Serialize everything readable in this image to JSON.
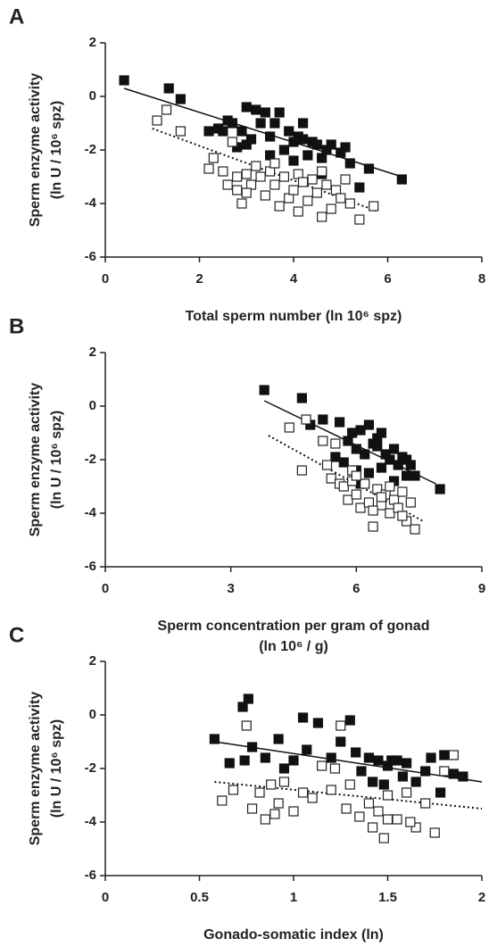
{
  "chart_data": [
    {
      "type": "scatter",
      "panel": "A",
      "ylabel": [
        "Sperm enzyme activity",
        "(ln U / 10⁶ spz)"
      ],
      "xlabel": [
        "Total sperm number (ln 10⁶ spz)"
      ],
      "xlim": [
        0,
        8
      ],
      "xticks": [
        0,
        2,
        4,
        6,
        8
      ],
      "ylim": [
        -6,
        2
      ],
      "yticks": [
        -6,
        -4,
        -2,
        0,
        2
      ],
      "series": [
        {
          "color": "#111111",
          "marker": "filled",
          "x": [
            0.4,
            1.35,
            1.6,
            2.2,
            2.4,
            2.6,
            2.7,
            2.8,
            2.9,
            3.0,
            3.1,
            3.2,
            3.3,
            3.4,
            3.5,
            3.6,
            3.7,
            3.8,
            3.9,
            4.0,
            4.1,
            4.2,
            4.3,
            4.4,
            4.5,
            4.6,
            4.7,
            4.8,
            5.0,
            5.2,
            5.4,
            5.6,
            6.3,
            3.5,
            4.2,
            4.6,
            3.0,
            4.0,
            2.5,
            5.1
          ],
          "values": [
            0.6,
            0.3,
            -0.1,
            -1.3,
            -1.2,
            -0.9,
            -1.0,
            -1.9,
            -1.3,
            -0.4,
            -1.6,
            -0.5,
            -1.0,
            -0.6,
            -1.5,
            -1.0,
            -0.6,
            -2.0,
            -1.3,
            -1.7,
            -1.5,
            -1.6,
            -2.2,
            -1.7,
            -1.8,
            -2.3,
            -2.0,
            -1.8,
            -2.1,
            -2.5,
            -3.4,
            -2.7,
            -3.1,
            -2.2,
            -1.0,
            -2.9,
            -1.8,
            -2.4,
            -1.3,
            -1.9
          ]
        },
        {
          "color": "#222222",
          "marker": "open",
          "x": [
            1.1,
            1.3,
            1.6,
            2.2,
            2.3,
            2.5,
            2.6,
            2.7,
            2.8,
            2.9,
            3.0,
            3.1,
            3.2,
            3.3,
            3.4,
            3.5,
            3.6,
            3.7,
            3.8,
            3.9,
            4.0,
            4.1,
            4.2,
            4.3,
            4.4,
            4.5,
            4.6,
            4.7,
            4.8,
            4.9,
            5.0,
            5.1,
            5.2,
            5.4,
            5.7,
            3.0,
            3.6,
            4.1,
            2.8,
            4.6
          ],
          "values": [
            -0.9,
            -0.5,
            -1.3,
            -2.7,
            -2.3,
            -2.8,
            -3.3,
            -1.7,
            -3.5,
            -4.0,
            -2.9,
            -3.3,
            -2.6,
            -3.0,
            -3.7,
            -2.8,
            -3.3,
            -4.1,
            -3.0,
            -3.8,
            -3.5,
            -2.9,
            -3.2,
            -3.9,
            -3.1,
            -3.6,
            -4.5,
            -3.3,
            -4.2,
            -3.5,
            -3.8,
            -3.1,
            -4.0,
            -4.6,
            -4.1,
            -3.6,
            -2.5,
            -4.3,
            -3.0,
            -2.8
          ]
        }
      ],
      "trend_lines": [
        {
          "style": "solid",
          "x": [
            0.4,
            6.3
          ],
          "y": [
            0.3,
            -3.0
          ]
        },
        {
          "style": "dotted",
          "x": [
            1.0,
            5.8
          ],
          "y": [
            -1.2,
            -4.3
          ]
        }
      ]
    },
    {
      "type": "scatter",
      "panel": "B",
      "ylabel": [
        "Sperm enzyme activity",
        "(ln U / 10⁶ spz)"
      ],
      "xlabel": [
        "Sperm concentration per gram of gonad",
        "(ln 10⁶ / g)"
      ],
      "xlim": [
        0,
        9
      ],
      "xticks": [
        0,
        3,
        6,
        9
      ],
      "ylim": [
        -6,
        2
      ],
      "yticks": [
        -6,
        -4,
        -2,
        0,
        2
      ],
      "series": [
        {
          "color": "#111111",
          "marker": "filled",
          "x": [
            3.8,
            4.7,
            4.9,
            5.2,
            5.5,
            5.6,
            5.8,
            5.9,
            6.0,
            6.1,
            6.2,
            6.3,
            6.4,
            6.5,
            6.6,
            6.7,
            6.8,
            6.9,
            7.0,
            7.1,
            7.2,
            7.3,
            7.4,
            8.0,
            5.7,
            6.0,
            6.3,
            6.6,
            6.9,
            7.2,
            6.5,
            6.1
          ],
          "values": [
            0.6,
            0.3,
            -0.7,
            -0.5,
            -1.9,
            -0.6,
            -1.3,
            -1.0,
            -1.6,
            -0.9,
            -1.8,
            -0.7,
            -1.4,
            -1.5,
            -1.0,
            -1.8,
            -2.0,
            -1.6,
            -2.2,
            -1.9,
            -2.6,
            -2.2,
            -2.6,
            -3.1,
            -2.1,
            -2.4,
            -2.5,
            -2.3,
            -2.8,
            -2.0,
            -1.2,
            -2.9
          ]
        },
        {
          "color": "#222222",
          "marker": "open",
          "x": [
            4.4,
            4.8,
            4.7,
            5.2,
            5.4,
            5.5,
            5.6,
            5.7,
            5.8,
            5.9,
            6.0,
            6.1,
            6.2,
            6.3,
            6.4,
            6.5,
            6.6,
            6.7,
            6.8,
            6.9,
            7.0,
            7.1,
            7.2,
            7.3,
            7.4,
            5.3,
            5.9,
            6.4,
            6.8,
            7.1,
            6.0,
            6.6
          ],
          "values": [
            -0.8,
            -0.5,
            -2.4,
            -1.3,
            -2.7,
            -1.4,
            -2.9,
            -3.0,
            -3.5,
            -2.4,
            -3.3,
            -3.8,
            -2.9,
            -3.6,
            -4.5,
            -3.1,
            -3.7,
            -3.3,
            -4.0,
            -3.5,
            -3.8,
            -3.2,
            -4.3,
            -3.6,
            -4.6,
            -2.2,
            -2.8,
            -3.9,
            -3.0,
            -4.1,
            -2.6,
            -3.4
          ]
        }
      ],
      "trend_lines": [
        {
          "style": "solid",
          "x": [
            3.8,
            7.9
          ],
          "y": [
            0.2,
            -2.9
          ]
        },
        {
          "style": "dotted",
          "x": [
            3.9,
            7.6
          ],
          "y": [
            -1.1,
            -4.3
          ]
        }
      ]
    },
    {
      "type": "scatter",
      "panel": "C",
      "ylabel": [
        "Sperm enzyme activity",
        "(ln U / 10⁶ spz)"
      ],
      "xlabel": [
        "Gonado-somatic index (ln)"
      ],
      "xlim": [
        0,
        2
      ],
      "xticks": [
        0,
        0.5,
        1,
        1.5,
        2
      ],
      "ylim": [
        -6,
        2
      ],
      "yticks": [
        -6,
        -4,
        -2,
        0,
        2
      ],
      "series": [
        {
          "color": "#111111",
          "marker": "filled",
          "x": [
            0.58,
            0.73,
            0.76,
            0.74,
            0.78,
            0.85,
            0.92,
            0.95,
            1.05,
            1.07,
            1.13,
            1.2,
            1.25,
            1.3,
            1.33,
            1.36,
            1.4,
            1.45,
            1.48,
            1.5,
            1.55,
            1.58,
            1.6,
            1.65,
            1.7,
            1.73,
            1.78,
            1.8,
            1.85,
            1.9,
            0.66,
            1.0,
            1.42,
            1.52
          ],
          "values": [
            -0.9,
            0.3,
            0.6,
            -1.7,
            -1.2,
            -1.6,
            -0.9,
            -2.0,
            -0.1,
            -1.3,
            -0.3,
            -1.6,
            -1.0,
            -0.2,
            -1.4,
            -2.1,
            -1.6,
            -1.7,
            -2.6,
            -1.9,
            -1.7,
            -2.3,
            -1.8,
            -2.5,
            -2.1,
            -1.6,
            -2.9,
            -1.5,
            -2.2,
            -2.3,
            -1.8,
            -1.7,
            -2.5,
            -1.7
          ]
        },
        {
          "color": "#222222",
          "marker": "open",
          "x": [
            0.62,
            0.68,
            0.75,
            0.78,
            0.82,
            0.85,
            0.88,
            0.92,
            0.95,
            1.0,
            1.05,
            1.1,
            1.15,
            1.2,
            1.25,
            1.28,
            1.3,
            1.35,
            1.4,
            1.42,
            1.45,
            1.48,
            1.5,
            1.55,
            1.6,
            1.65,
            1.7,
            1.75,
            1.8,
            1.85,
            0.9,
            1.22,
            1.5,
            1.62
          ],
          "values": [
            -3.2,
            -2.8,
            -0.4,
            -3.5,
            -2.9,
            -3.9,
            -2.6,
            -3.3,
            -2.5,
            -3.6,
            -2.9,
            -3.1,
            -1.9,
            -2.8,
            -0.4,
            -3.5,
            -2.6,
            -3.8,
            -3.3,
            -4.2,
            -3.6,
            -4.6,
            -3.0,
            -3.9,
            -2.9,
            -4.2,
            -3.3,
            -4.4,
            -2.1,
            -1.5,
            -3.7,
            -2.0,
            -3.9,
            -4.0
          ]
        }
      ],
      "trend_lines": [
        {
          "style": "solid",
          "x": [
            0.58,
            2
          ],
          "y": [
            -1.0,
            -2.5
          ]
        },
        {
          "style": "dotted",
          "x": [
            0.58,
            2
          ],
          "y": [
            -2.5,
            -3.5
          ]
        }
      ]
    }
  ]
}
